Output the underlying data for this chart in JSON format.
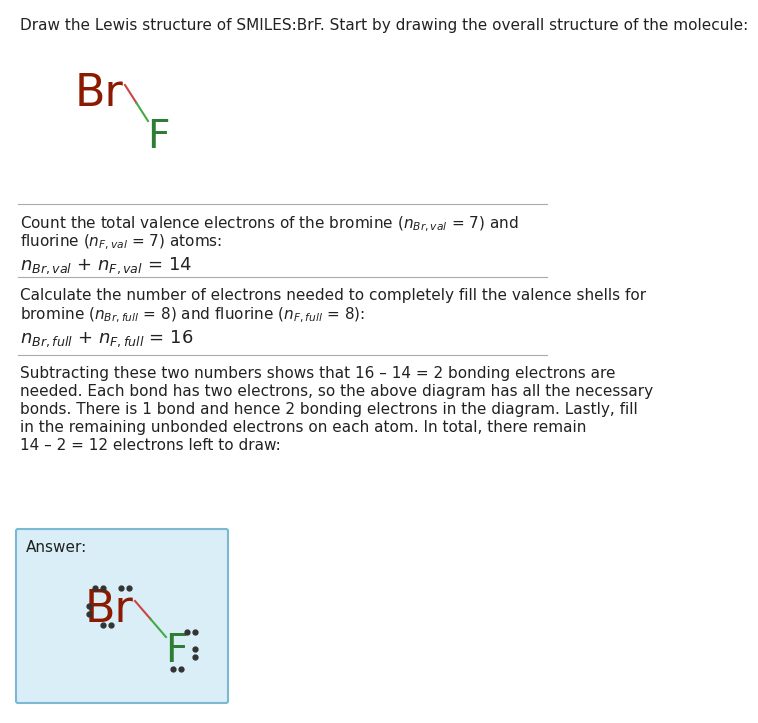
{
  "title_text": "Draw the Lewis structure of SMILES:BrF. Start by drawing the overall structure of the molecule:",
  "section1_line1": "Count the total valence electrons of the bromine ($n_{Br,val}$ = 7) and",
  "section1_line2": "fluorine ($n_{F,val}$ = 7) atoms:",
  "section1_eq": "$n_{Br,val}$ + $n_{F,val}$ = 14",
  "section2_line1": "Calculate the number of electrons needed to completely fill the valence shells for",
  "section2_line2": "bromine ($n_{Br,full}$ = 8) and fluorine ($n_{F,full}$ = 8):",
  "section2_eq": "$n_{Br,full}$ + $n_{F,full}$ = 16",
  "section3_lines": [
    "Subtracting these two numbers shows that 16 – 14 = 2 bonding electrons are",
    "needed. Each bond has two electrons, so the above diagram has all the necessary",
    "bonds. There is 1 bond and hence 2 bonding electrons in the diagram. Lastly, fill",
    "in the remaining unbonded electrons on each atom. In total, there remain",
    "14 – 2 = 12 electrons left to draw:"
  ],
  "answer_label": "Answer:",
  "br_color": "#8B1A00",
  "f_color": "#2E7D32",
  "bond_color_br": "#cc4444",
  "bond_color_f": "#44aa44",
  "dot_color": "#333333",
  "answer_bg": "#d9eef7",
  "answer_border": "#7ab8d4",
  "divider_color": "#aaaaaa",
  "bg_color": "#ffffff",
  "text_color": "#222222"
}
